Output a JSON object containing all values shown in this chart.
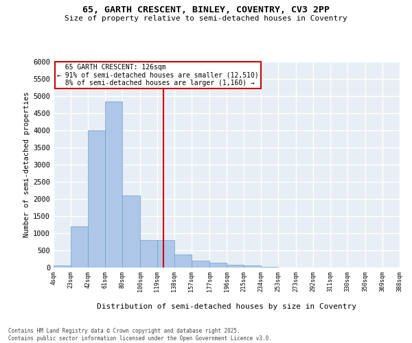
{
  "title_line1": "65, GARTH CRESCENT, BINLEY, COVENTRY, CV3 2PP",
  "title_line2": "Size of property relative to semi-detached houses in Coventry",
  "xlabel": "Distribution of semi-detached houses by size in Coventry",
  "ylabel": "Number of semi-detached properties",
  "property_label": "65 GARTH CRESCENT: 126sqm",
  "pct_smaller": 91,
  "n_smaller": "12,510",
  "pct_larger": 8,
  "n_larger": "1,160",
  "bin_edges": [
    4,
    23,
    42,
    61,
    80,
    100,
    119,
    138,
    157,
    177,
    196,
    215,
    234,
    253,
    273,
    292,
    311,
    330,
    350,
    369,
    388
  ],
  "bar_heights": [
    70,
    1200,
    4000,
    4850,
    2100,
    800,
    800,
    390,
    200,
    140,
    80,
    55,
    30,
    0,
    0,
    0,
    0,
    0,
    0,
    0
  ],
  "bar_color": "#aec6e8",
  "bar_edge_color": "#6a9ec8",
  "vline_color": "#cc0000",
  "vline_x": 126,
  "annotation_box_color": "#cc0000",
  "ylim": [
    0,
    6000
  ],
  "ytick_step": 500,
  "background_color": "#e8eef5",
  "grid_color": "#ffffff",
  "fig_bg_color": "#ffffff",
  "footer_line1": "Contains HM Land Registry data © Crown copyright and database right 2025.",
  "footer_line2": "Contains public sector information licensed under the Open Government Licence v3.0.",
  "tick_labels": [
    "4sqm",
    "23sqm",
    "42sqm",
    "61sqm",
    "80sqm",
    "100sqm",
    "119sqm",
    "138sqm",
    "157sqm",
    "177sqm",
    "196sqm",
    "215sqm",
    "234sqm",
    "253sqm",
    "273sqm",
    "292sqm",
    "311sqm",
    "330sqm",
    "350sqm",
    "369sqm",
    "388sqm"
  ]
}
